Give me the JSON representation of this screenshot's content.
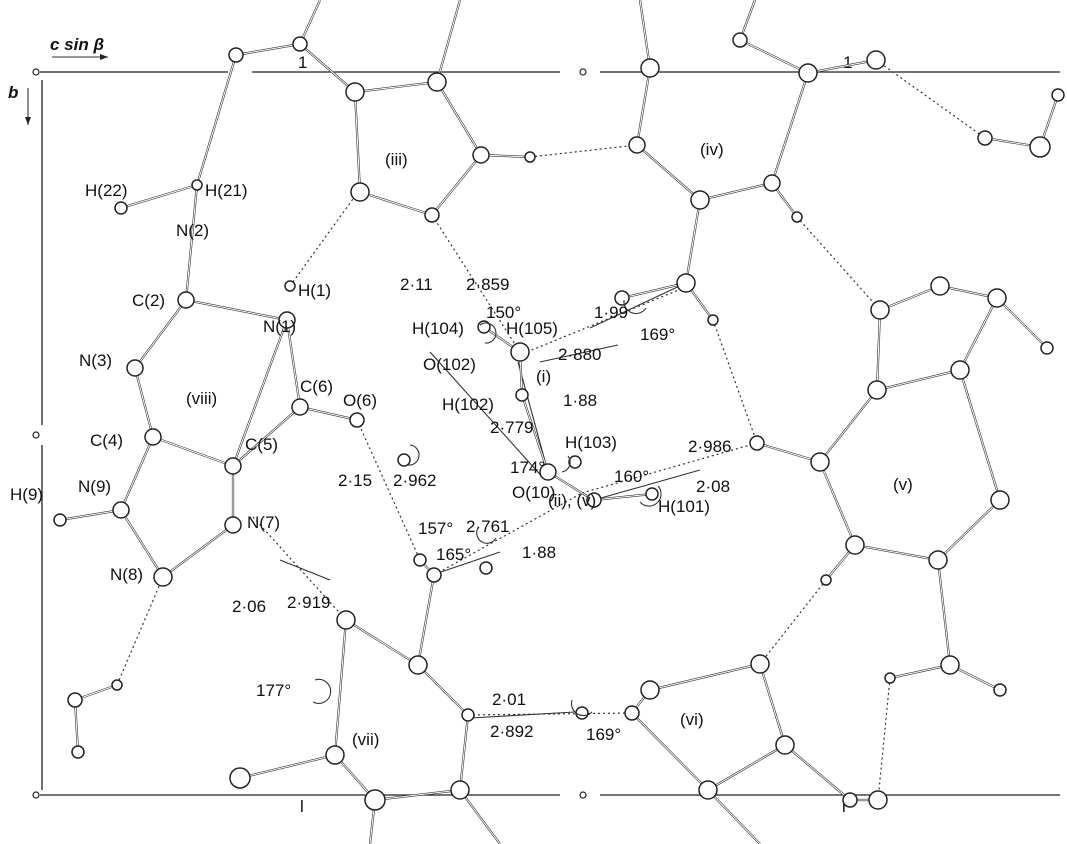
{
  "axes": {
    "horizontal": "c sin β",
    "vertical": "b"
  },
  "atom_labels": {
    "h22": "H(22)",
    "h21": "H(21)",
    "n2": "N(2)",
    "h1": "H(1)",
    "c2": "C(2)",
    "n1": "N(1)",
    "n3": "N(3)",
    "c6": "C(6)",
    "o6": "O(6)",
    "c4": "C(4)",
    "c5": "C(5)",
    "h9": "H(9)",
    "n9": "N(9)",
    "n7": "N(7)",
    "n8": "N(8)",
    "h104": "H(104)",
    "h105": "H(105)",
    "o102": "O(102)",
    "h102": "H(102)",
    "h103": "H(103)",
    "o10": "O(10)",
    "h101": "H(101)"
  },
  "ring_labels": {
    "iii": "(iii)",
    "iv": "(iv)",
    "v": "(v)",
    "vi": "(vi)",
    "vii": "(vii)",
    "viii": "(viii)",
    "i": "(i)",
    "ii_v": "(ii), (v)"
  },
  "distances": {
    "d_211": "2·11",
    "d_2859": "2·859",
    "d_199": "1·99",
    "d_2880": "2·880",
    "d_188a": "1·88",
    "d_2779": "2·779",
    "d_215": "2·15",
    "d_2962": "2·962",
    "d_2986": "2·986",
    "d_208": "2·08",
    "d_2761": "2·761",
    "d_188b": "1·88",
    "d_206": "2·06",
    "d_2919": "2·919",
    "d_201": "2·01",
    "d_2892": "2·892"
  },
  "angles": {
    "a150": "150°",
    "a169a": "169°",
    "a174": "174°",
    "a160": "160°",
    "a157": "157°",
    "a165": "165°",
    "a177": "177°",
    "a169b": "169°"
  },
  "cell_ticks": {
    "top_left": "1",
    "top_right": "1",
    "bottom_left": "l",
    "bottom_right": "l"
  }
}
